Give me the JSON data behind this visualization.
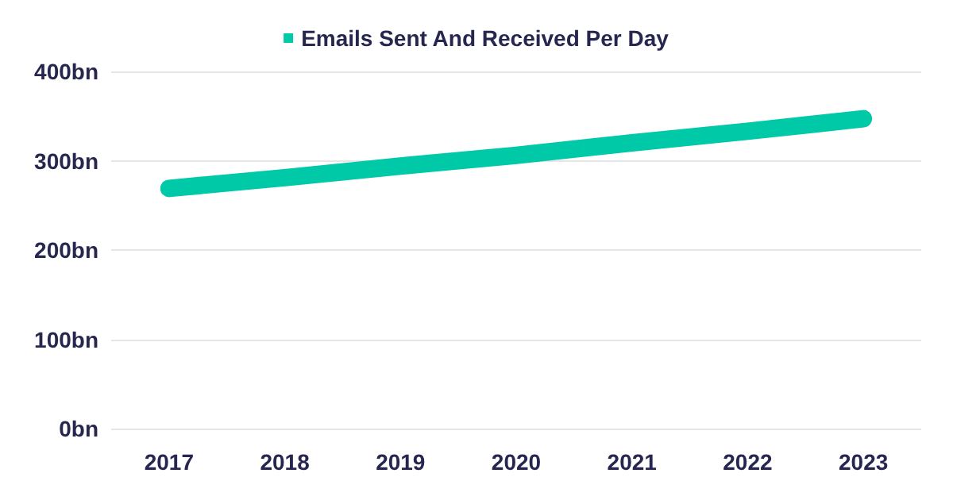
{
  "chart_data": {
    "type": "line",
    "categories": [
      "2017",
      "2018",
      "2019",
      "2020",
      "2021",
      "2022",
      "2023"
    ],
    "series": [
      {
        "name": "Emails Sent And Received Per Day",
        "color": "#00c9a7",
        "values": [
          269,
          281,
          294,
          306,
          320,
          333,
          347
        ]
      }
    ],
    "ylim": [
      0,
      400
    ],
    "yticks": [
      {
        "value": 0,
        "label": "0bn"
      },
      {
        "value": 100,
        "label": "100bn"
      },
      {
        "value": 200,
        "label": "200bn"
      },
      {
        "value": 300,
        "label": "300bn"
      },
      {
        "value": 400,
        "label": "400bn"
      }
    ],
    "grid": "y",
    "legend": "top",
    "line_style": "solid"
  }
}
